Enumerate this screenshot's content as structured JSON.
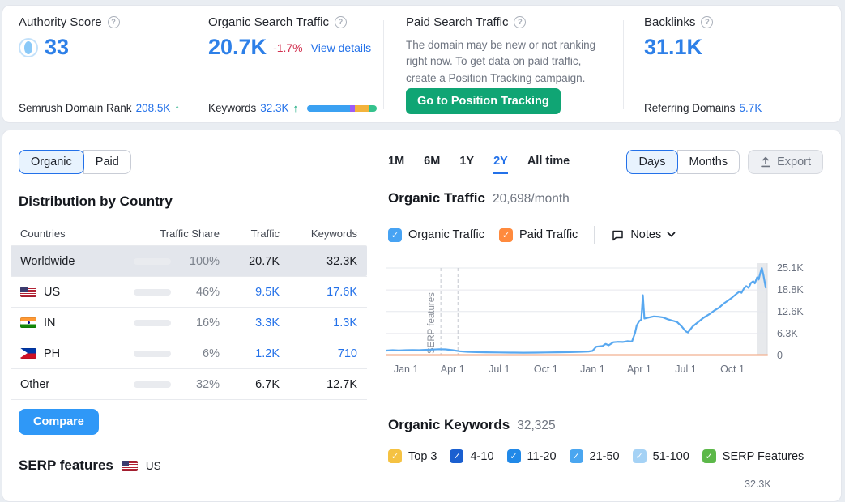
{
  "header": {
    "authority": {
      "title": "Authority Score",
      "value": "33",
      "footer_label": "Semrush Domain Rank",
      "footer_value": "208.5K",
      "arrow": "↑"
    },
    "organic": {
      "title": "Organic Search Traffic",
      "value": "20.7K",
      "delta": "-1.7%",
      "link": "View details",
      "footer_label": "Keywords",
      "footer_value": "32.3K",
      "arrow": "↑",
      "bar_segments": [
        {
          "color": "#3ba1f2",
          "pct": 62
        },
        {
          "color": "#9b5cf6",
          "pct": 7
        },
        {
          "color": "#f3b33c",
          "pct": 21
        },
        {
          "color": "#35c28d",
          "pct": 10
        }
      ]
    },
    "paid": {
      "title": "Paid Search Traffic",
      "message": "The domain may be new or not ranking right now. To get data on paid traffic, create a Position Tracking campaign.",
      "button": "Go to Position Tracking"
    },
    "backlinks": {
      "title": "Backlinks",
      "value": "31.1K",
      "footer_label": "Referring Domains",
      "footer_value": "5.7K"
    }
  },
  "main": {
    "source_tabs": {
      "options": [
        "Organic",
        "Paid"
      ],
      "active": "Organic"
    },
    "ranges": {
      "options": [
        "1M",
        "6M",
        "1Y",
        "2Y",
        "All time"
      ],
      "active": "2Y"
    },
    "granularity": {
      "options": [
        "Days",
        "Months"
      ],
      "active": "Days"
    },
    "export_label": "Export",
    "distribution": {
      "title": "Distribution by Country",
      "columns": [
        "Countries",
        "Traffic Share",
        "Traffic",
        "Keywords"
      ],
      "rows": [
        {
          "country": "Worldwide",
          "flag": null,
          "share_pct": 100,
          "share_label": "100%",
          "traffic": "20.7K",
          "keywords": "32.3K",
          "selected": true,
          "links": false
        },
        {
          "country": "US",
          "flag": "us",
          "share_pct": 46,
          "share_label": "46%",
          "traffic": "9.5K",
          "keywords": "17.6K",
          "selected": false,
          "links": true
        },
        {
          "country": "IN",
          "flag": "in",
          "share_pct": 16,
          "share_label": "16%",
          "traffic": "3.3K",
          "keywords": "1.3K",
          "selected": false,
          "links": true
        },
        {
          "country": "PH",
          "flag": "ph",
          "share_pct": 6,
          "share_label": "6%",
          "traffic": "1.2K",
          "keywords": "710",
          "selected": false,
          "links": true
        },
        {
          "country": "Other",
          "flag": null,
          "share_pct": 32,
          "share_label": "32%",
          "traffic": "6.7K",
          "keywords": "12.7K",
          "selected": false,
          "links": false
        }
      ],
      "compare_button": "Compare"
    },
    "serp_features": {
      "title": "SERP features",
      "region": "US"
    },
    "organic_traffic": {
      "title": "Organic Traffic",
      "subtitle": "20,698/month",
      "toggles": [
        {
          "label": "Organic Traffic",
          "color": "#47a3f3"
        },
        {
          "label": "Paid Traffic",
          "color": "#ff8a3d"
        }
      ],
      "notes_label": "Notes"
    },
    "organic_keywords": {
      "title": "Organic Keywords",
      "subtitle": "32,325",
      "filters": [
        {
          "label": "Top 3",
          "color": "#f5c242"
        },
        {
          "label": "4-10",
          "color": "#1a5fd0"
        },
        {
          "label": "11-20",
          "color": "#2189e8"
        },
        {
          "label": "21-50",
          "color": "#4aa6f0"
        },
        {
          "label": "51-100",
          "color": "#a5d2f5"
        },
        {
          "label": "SERP Features",
          "color": "#5cb849"
        }
      ],
      "partial_axis_label": "32.3K"
    }
  },
  "chart_data": {
    "type": "line",
    "title": "Organic Traffic",
    "subtitle": "20,698/month",
    "x_range": [
      0,
      24.5
    ],
    "y_range": [
      0,
      26500
    ],
    "x_ticks": [
      {
        "month": 1.26,
        "label": "Jan 1"
      },
      {
        "month": 4.26,
        "label": "Apr 1"
      },
      {
        "month": 7.26,
        "label": "Jul 1"
      },
      {
        "month": 10.26,
        "label": "Oct 1"
      },
      {
        "month": 13.26,
        "label": "Jan 1"
      },
      {
        "month": 16.26,
        "label": "Apr 1"
      },
      {
        "month": 19.26,
        "label": "Jul 1"
      },
      {
        "month": 22.26,
        "label": "Oct 1"
      }
    ],
    "y_ticks": [
      {
        "v": 0,
        "label": "0"
      },
      {
        "v": 6300,
        "label": "6.3K"
      },
      {
        "v": 12600,
        "label": "12.6K"
      },
      {
        "v": 18800,
        "label": "18.8K"
      },
      {
        "v": 25100,
        "label": "25.1K"
      }
    ],
    "annotation": {
      "label": "SERP features",
      "line_months": [
        3.5,
        4.6
      ]
    },
    "grid": true,
    "legend_position": "above",
    "series": [
      {
        "name": "Organic Traffic",
        "color": "#58a8f0",
        "points": [
          [
            0,
            1400
          ],
          [
            0.4,
            1500
          ],
          [
            0.8,
            1450
          ],
          [
            1.26,
            1500
          ],
          [
            1.7,
            1550
          ],
          [
            2.1,
            1500
          ],
          [
            2.5,
            1600
          ],
          [
            3.0,
            1700
          ],
          [
            3.4,
            1800
          ],
          [
            3.8,
            1750
          ],
          [
            4.26,
            1500
          ],
          [
            4.7,
            1200
          ],
          [
            5.2,
            1050
          ],
          [
            5.8,
            950
          ],
          [
            6.4,
            900
          ],
          [
            7.26,
            850
          ],
          [
            8.0,
            820
          ],
          [
            8.8,
            800
          ],
          [
            9.6,
            820
          ],
          [
            10.26,
            850
          ],
          [
            11.0,
            900
          ],
          [
            11.8,
            950
          ],
          [
            12.5,
            1050
          ],
          [
            13.0,
            1150
          ],
          [
            13.26,
            1300
          ],
          [
            13.5,
            2500
          ],
          [
            13.9,
            2700
          ],
          [
            14.1,
            3300
          ],
          [
            14.3,
            2900
          ],
          [
            14.6,
            3800
          ],
          [
            14.9,
            3900
          ],
          [
            15.2,
            3850
          ],
          [
            15.5,
            4100
          ],
          [
            15.8,
            4000
          ],
          [
            16.0,
            6500
          ],
          [
            16.1,
            8600
          ],
          [
            16.26,
            9800
          ],
          [
            16.4,
            10300
          ],
          [
            16.5,
            17300
          ],
          [
            16.6,
            10600
          ],
          [
            16.9,
            10900
          ],
          [
            17.2,
            11200
          ],
          [
            17.5,
            11100
          ],
          [
            17.8,
            10900
          ],
          [
            18.1,
            10400
          ],
          [
            18.4,
            10000
          ],
          [
            18.7,
            9600
          ],
          [
            19.0,
            8300
          ],
          [
            19.26,
            6900
          ],
          [
            19.4,
            6600
          ],
          [
            19.7,
            8300
          ],
          [
            20.0,
            9400
          ],
          [
            20.4,
            10800
          ],
          [
            20.8,
            11900
          ],
          [
            21.1,
            12900
          ],
          [
            21.4,
            13700
          ],
          [
            21.7,
            14900
          ],
          [
            22.0,
            15800
          ],
          [
            22.26,
            16700
          ],
          [
            22.5,
            17600
          ],
          [
            22.7,
            18300
          ],
          [
            22.85,
            18000
          ],
          [
            23.0,
            19200
          ],
          [
            23.15,
            19900
          ],
          [
            23.3,
            19400
          ],
          [
            23.45,
            20800
          ],
          [
            23.6,
            21300
          ],
          [
            23.7,
            20700
          ],
          [
            23.85,
            22400
          ],
          [
            23.95,
            21800
          ],
          [
            24.05,
            23600
          ],
          [
            24.15,
            25100
          ],
          [
            24.25,
            23200
          ],
          [
            24.4,
            19500
          ]
        ]
      },
      {
        "name": "Paid Traffic",
        "color": "#f2b191",
        "points": [
          [
            0,
            120
          ],
          [
            24.5,
            120
          ]
        ]
      }
    ]
  }
}
